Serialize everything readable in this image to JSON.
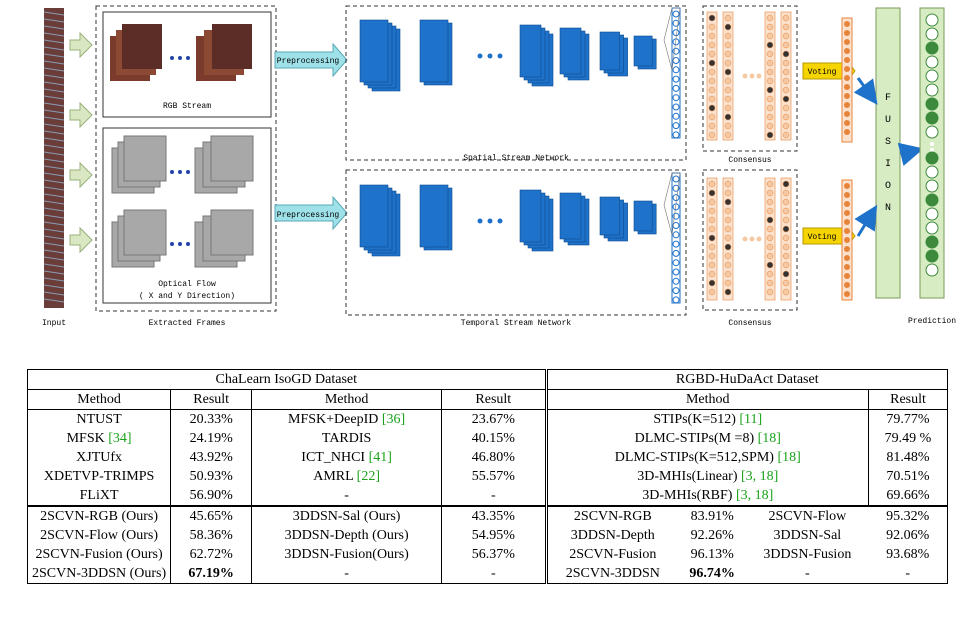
{
  "figure": {
    "labels": {
      "input": "Input",
      "extracted_frames": "Extracted Frames",
      "rgb_stream": "RGB Stream",
      "optical_flow_1": "Optical Flow",
      "optical_flow_2": "( X and Y Direction)",
      "preprocessing_top": "Preprocessing",
      "preprocessing_bottom": "Preprocessing",
      "spatial_network": "Spatial Stream Network",
      "temporal_network": "Temporal Stream Network",
      "consensus_top": "Consensus",
      "consensus_bottom": "Consensus",
      "voting_top": "Voting",
      "voting_bottom": "Voting",
      "fusion": "FUSION",
      "prediction": "Prediction",
      "dots": "• • •"
    },
    "colors": {
      "accent_blue": "#1f72c9",
      "arrow_cyan": "#9fe1e9",
      "voting_yellow": "#f5d400",
      "fusion_green": "#d8ecc4",
      "orange": "#e8843a",
      "dark_green": "#3d8a3d"
    }
  },
  "table": {
    "chalearn_title": "ChaLearn IsoGD Dataset",
    "rgbd_title": "RGBD-HuDaAct Dataset",
    "col_method": "Method",
    "col_result": "Result",
    "chalearn_rows": [
      {
        "m1": "NTUST",
        "c1": "",
        "r1": "20.33%",
        "m2": "MFSK+DeepID ",
        "c2": "[36]",
        "r2": "23.67%"
      },
      {
        "m1": "MFSK ",
        "c1": "[34]",
        "r1": "24.19%",
        "m2": "TARDIS",
        "c2": "",
        "r2": "40.15%"
      },
      {
        "m1": "XJTUfx",
        "c1": "",
        "r1": "43.92%",
        "m2": "ICT_NHCI ",
        "c2": "[41]",
        "r2": "46.80%"
      },
      {
        "m1": "XDETVP-TRIMPS",
        "c1": "",
        "r1": "50.93%",
        "m2": "AMRL ",
        "c2": "[22]",
        "r2": "55.57%"
      },
      {
        "m1": "FLiXT",
        "c1": "",
        "r1": "56.90%",
        "m2": "-",
        "c2": "",
        "r2": "-"
      }
    ],
    "rgbd_rows": [
      {
        "m": "STIPs(K=512) ",
        "c": "[11]",
        "r": "79.77%"
      },
      {
        "m": "DLMC-STIPs(M =8) ",
        "c": "[18]",
        "r": "79.49 %"
      },
      {
        "m": "DLMC-STIPs(K=512,SPM) ",
        "c": "[18]",
        "r": "81.48%"
      },
      {
        "m": "3D-MHIs(Linear) ",
        "c": "[3, 18]",
        "r": "70.51%"
      },
      {
        "m": "3D-MHIs(RBF) ",
        "c": "[3, 18]",
        "r": "69.66%"
      }
    ],
    "ours_rows": [
      {
        "a": "2SCVN-RGB (Ours)",
        "ar": "45.65%",
        "b": "3DDSN-Sal (Ours)",
        "br": "43.35%",
        "c": "2SCVN-RGB",
        "cr": "83.91%",
        "d": "2SCVN-Flow",
        "dr": "95.32%"
      },
      {
        "a": "2SCVN-Flow (Ours)",
        "ar": "58.36%",
        "b": "3DDSN-Depth (Ours)",
        "br": "54.95%",
        "c": "3DDSN-Depth",
        "cr": "92.26%",
        "d": "3DDSN-Sal",
        "dr": "92.06%"
      },
      {
        "a": "2SCVN-Fusion (Ours)",
        "ar": "62.72%",
        "b": "3DDSN-Fusion(Ours)",
        "br": "56.37%",
        "c": "2SCVN-Fusion",
        "cr": "96.13%",
        "d": "3DDSN-Fusion",
        "dr": "93.68%"
      },
      {
        "a": "2SCVN-3DDSN (Ours)",
        "ar": "67.19%",
        "b": "-",
        "br": "-",
        "c": "2SCVN-3DDSN",
        "cr": "96.74%",
        "d": "-",
        "dr": "-"
      }
    ]
  }
}
